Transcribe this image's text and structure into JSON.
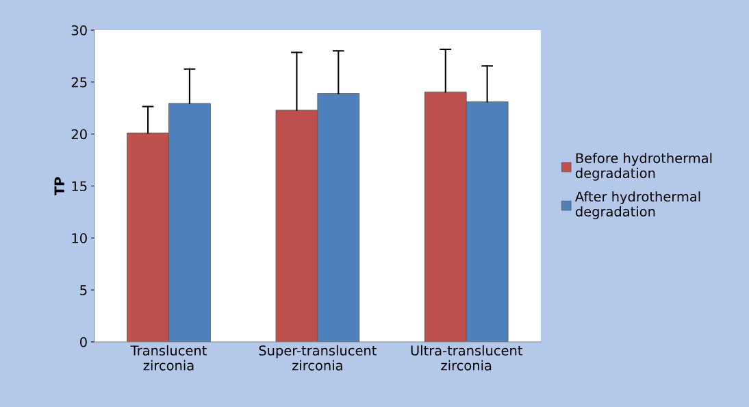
{
  "chart_data": {
    "type": "bar",
    "ylabel": "TP",
    "categories": [
      "Translucent\nzirconia",
      "Super-translucent\nzirconia",
      "Ultra-translucent\nzirconia"
    ],
    "series": [
      {
        "name": "Before hydrothermal\ndegradation",
        "color": "#c0504d",
        "values": [
          20.1,
          22.3,
          24.05
        ],
        "errors": [
          [
            20.1,
            22.65
          ],
          [
            22.3,
            27.85
          ],
          [
            24.05,
            28.15
          ]
        ]
      },
      {
        "name": "After hydrothermal\ndegradation",
        "color": "#4f81bd",
        "values": [
          22.95,
          23.9,
          23.1
        ],
        "errors": [
          [
            22.95,
            26.25
          ],
          [
            23.9,
            28.0
          ],
          [
            23.1,
            26.55
          ]
        ]
      }
    ],
    "ylim": [
      0,
      30
    ],
    "yticks": [
      0,
      5,
      10,
      15,
      20,
      25,
      30
    ],
    "grid": false,
    "legend": "right"
  }
}
